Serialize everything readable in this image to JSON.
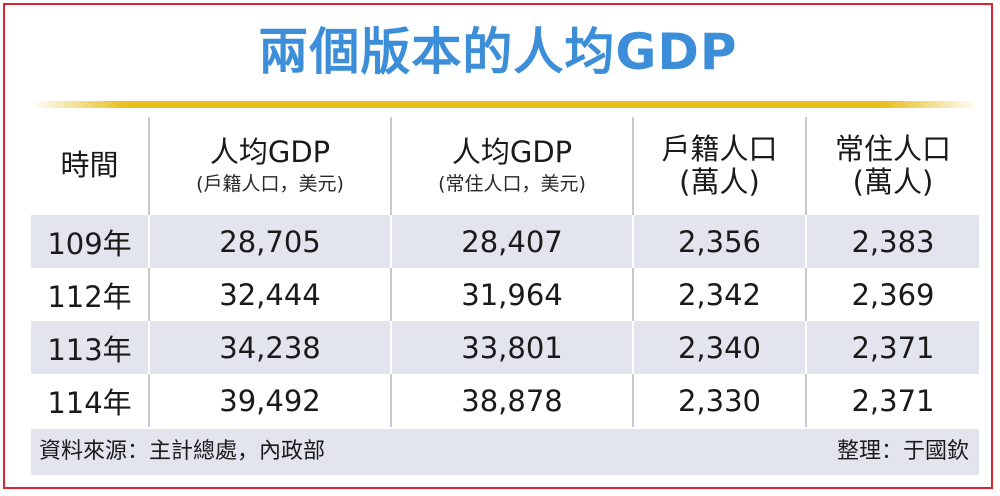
{
  "chart_data": {
    "type": "table",
    "title": "兩個版本的人均GDP",
    "columns": [
      {
        "label": "時間",
        "sub": ""
      },
      {
        "label": "人均GDP",
        "sub": "(戶籍人口，美元)"
      },
      {
        "label": "人均GDP",
        "sub": "(常住人口，美元)"
      },
      {
        "label": "戶籍人口",
        "sub": "(萬人)"
      },
      {
        "label": "常住人口",
        "sub": "(萬人)"
      }
    ],
    "rows": [
      [
        "109年",
        "28,705",
        "28,407",
        "2,356",
        "2,383"
      ],
      [
        "112年",
        "32,444",
        "31,964",
        "2,342",
        "2,369"
      ],
      [
        "113年",
        "34,238",
        "33,801",
        "2,340",
        "2,371"
      ],
      [
        "114年",
        "39,492",
        "38,878",
        "2,330",
        "2,371"
      ]
    ],
    "source": "資料來源：主計總處，內政部",
    "editor": "整理：于國欽"
  },
  "colors": {
    "title": "#3d8ed8",
    "frame": "#d8262e",
    "rule": "#e9bf1e",
    "stripe": "#e3e5ee"
  }
}
